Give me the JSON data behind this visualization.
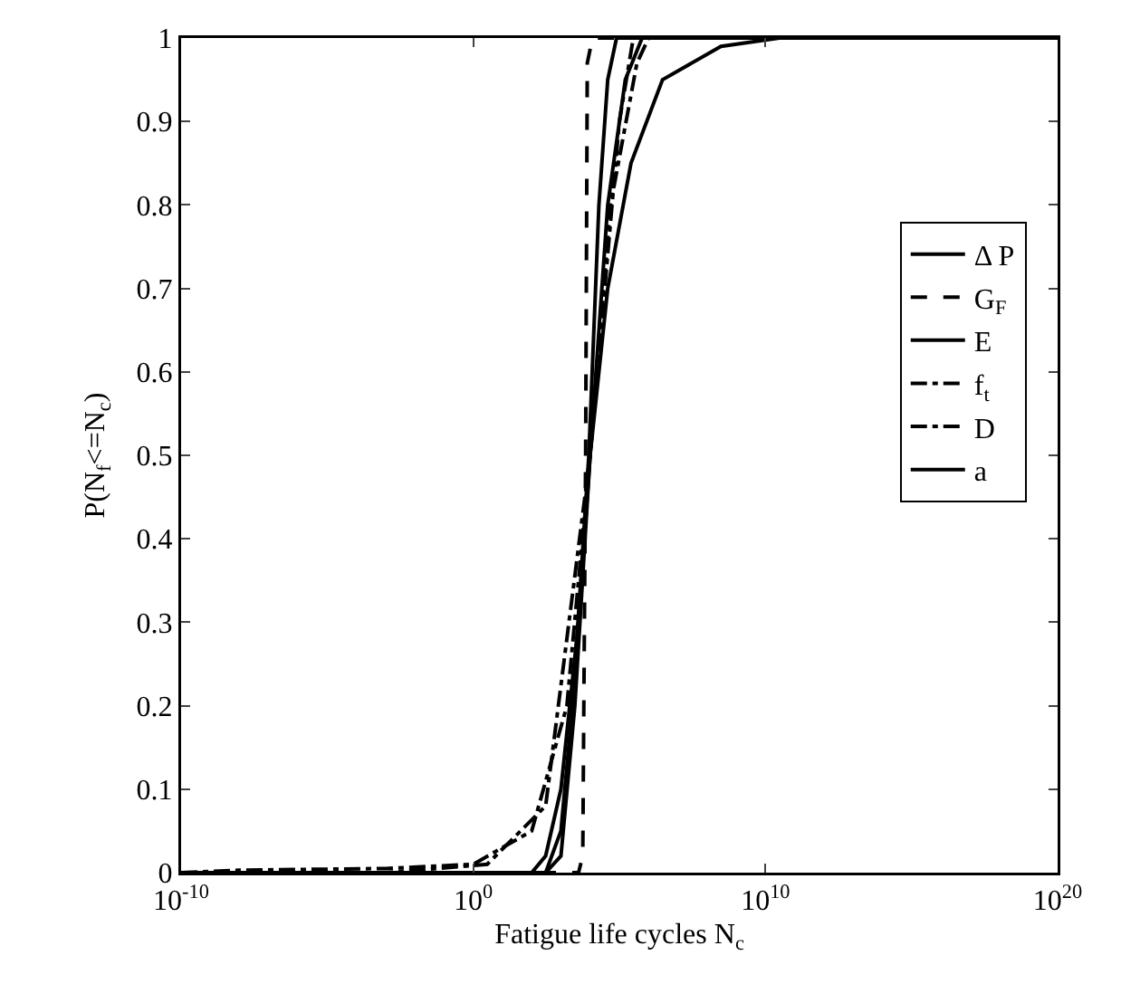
{
  "chart_data": {
    "type": "line",
    "xlabel": "Fatigue life cycles N$_{c}$",
    "ylabel": "P(N$_{f}$<=N$_{c}$)",
    "log": "x",
    "xlim": [
      1e-10,
      1e+20
    ],
    "xticks": [
      {
        "value": 1e-10,
        "label": "10$^{-10}$"
      },
      {
        "value": 1,
        "label": "10$^{0}$"
      },
      {
        "value": 10000000000.0,
        "label": "10$^{10}$"
      },
      {
        "value": 1e+20,
        "label": "10$^{20}$"
      }
    ],
    "ylim": [
      0,
      1
    ],
    "yticks": [
      0,
      0.1,
      0.2,
      0.3,
      0.4,
      0.5,
      0.6,
      0.7,
      0.8,
      0.9,
      1
    ],
    "grid": false,
    "legend": "right",
    "marker": "none",
    "series": [
      {
        "name": "Δ P",
        "color": "#000000",
        "line_style": "solid",
        "x": [
          1e-10,
          300,
          1000,
          2500,
          9000,
          20000,
          40000,
          80000,
          1e+20
        ],
        "values": [
          0,
          0,
          0.05,
          0.2,
          0.5,
          0.8,
          0.95,
          1,
          1
        ]
      },
      {
        "name": "G$_{F}$",
        "color": "#000000",
        "line_style": "dashed",
        "x": [
          1e-10,
          4000,
          5600,
          7000,
          8000,
          12000,
          1e+20
        ],
        "values": [
          0,
          0,
          0.02,
          0.5,
          0.97,
          1,
          1
        ]
      },
      {
        "name": "E",
        "color": "#000000",
        "line_style": "solid",
        "x": [
          1e-10,
          100,
          300,
          1000,
          4000,
          10000,
          40000,
          160000,
          600000,
          1e+20
        ],
        "values": [
          0,
          0,
          0.02,
          0.1,
          0.3,
          0.5,
          0.8,
          0.95,
          1,
          1
        ]
      },
      {
        "name": "f$_{t}$",
        "color": "#000000",
        "line_style": "dashdot",
        "x": [
          1e-10,
          1e-08,
          0.001,
          1,
          100,
          1600,
          10000,
          50000,
          400000,
          1000000,
          1e+20
        ],
        "values": [
          0,
          0.003,
          0.005,
          0.01,
          0.05,
          0.2,
          0.5,
          0.8,
          0.97,
          1,
          1
        ]
      },
      {
        "name": "D",
        "color": "#000000",
        "line_style": "dashdot",
        "x": [
          1e-10,
          0.001,
          3,
          300,
          10000,
          100000,
          300000,
          1e+20
        ],
        "values": [
          0,
          0,
          0.01,
          0.08,
          0.5,
          0.9,
          1,
          1
        ]
      },
      {
        "name": "a",
        "color": "#000000",
        "line_style": "solid",
        "x": [
          1e-10,
          300,
          1000,
          3000,
          10000,
          40000,
          250000,
          3000000,
          300000000,
          30000000000.0,
          1e+20
        ],
        "values": [
          0,
          0,
          0.02,
          0.2,
          0.5,
          0.7,
          0.85,
          0.95,
          0.99,
          1,
          1
        ]
      }
    ]
  }
}
